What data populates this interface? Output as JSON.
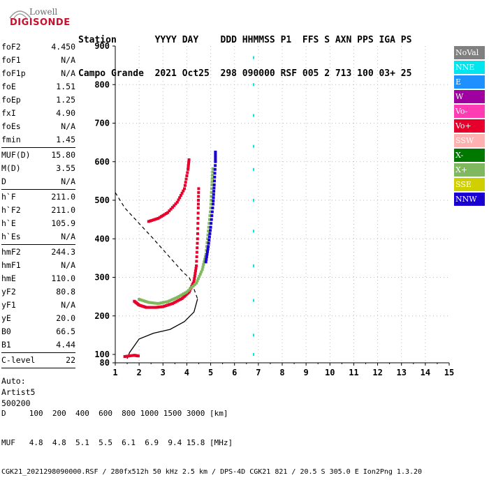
{
  "logo": {
    "top": "Lowell",
    "brand": "DIGISONDE"
  },
  "header": {
    "labels_line": "Station       YYYY DAY    DDD HHMMSS P1  FFS S AXN PPS IGA PS",
    "values_line": "Campo Grande  2021 Oct25  298 090000 RSF 005 2 713 100 03+ 25"
  },
  "params": {
    "group1": [
      {
        "name": "foF2",
        "value": "4.450"
      },
      {
        "name": "foF1",
        "value": "N/A"
      },
      {
        "name": "foF1p",
        "value": "N/A"
      },
      {
        "name": "foE",
        "value": "1.51"
      },
      {
        "name": "foEp",
        "value": "1.25"
      },
      {
        "name": "fxI",
        "value": "4.90"
      },
      {
        "name": "foEs",
        "value": "N/A"
      },
      {
        "name": "fmin",
        "value": "1.45"
      }
    ],
    "group2": [
      {
        "name": "MUF(D)",
        "value": "15.80"
      },
      {
        "name": "M(D)",
        "value": "3.55"
      },
      {
        "name": "D",
        "value": "N/A"
      }
    ],
    "group3": [
      {
        "name": "h`F",
        "value": "211.0"
      },
      {
        "name": "h`F2",
        "value": "211.0"
      },
      {
        "name": "h`E",
        "value": "105.9"
      },
      {
        "name": "h`Es",
        "value": "N/A"
      }
    ],
    "group4": [
      {
        "name": "hmF2",
        "value": "244.3"
      },
      {
        "name": "hmF1",
        "value": "N/A"
      },
      {
        "name": "hmE",
        "value": "110.0"
      },
      {
        "name": "yF2",
        "value": "80.8"
      },
      {
        "name": "yF1",
        "value": "N/A"
      },
      {
        "name": "yE",
        "value": "20.0"
      },
      {
        "name": "B0",
        "value": "66.5"
      },
      {
        "name": "B1",
        "value": "4.44"
      }
    ],
    "group5": [
      {
        "name": "C-level",
        "value": "22"
      }
    ],
    "auto": [
      "Auto:",
      "Artist5",
      "500200"
    ]
  },
  "legend": [
    {
      "label": "NoVal",
      "color": "#808080"
    },
    {
      "label": "NNE",
      "color": "#00e5ee"
    },
    {
      "label": "E",
      "color": "#1e90ff"
    },
    {
      "label": "W",
      "color": "#a000a0"
    },
    {
      "label": "Vo-",
      "color": "#ff3cb4"
    },
    {
      "label": "Vo+",
      "color": "#e8002c"
    },
    {
      "label": "SSW",
      "color": "#ffb0b0"
    },
    {
      "label": "X-",
      "color": "#007800"
    },
    {
      "label": "X+",
      "color": "#80b860"
    },
    {
      "label": "SSE",
      "color": "#d0d000"
    },
    {
      "label": "NNW",
      "color": "#1a00d0"
    }
  ],
  "footer": {
    "line1": "D     100  200  400  600  800 1000 1500 3000 [km]",
    "line2": "MUF   4.8  4.8  5.1  5.5  6.1  6.9  9.4 15.8 [MHz]",
    "line3": "CGK21_2021298090000.RSF / 280fx512h 50 kHz 2.5 km / DPS-4D CGK21 821 / 20.5 S 305.0 E Ion2Png 1.3.20"
  },
  "chart_data": {
    "type": "scatter",
    "x_ticks": [
      "1",
      "2",
      "3",
      "4",
      "5",
      "6",
      "7",
      "8",
      "9",
      "10",
      "11",
      "12",
      "13",
      "14",
      "15"
    ],
    "y_ticks": [
      "80",
      "100",
      "200",
      "300",
      "400",
      "500",
      "600",
      "700",
      "800",
      "900"
    ],
    "xlim": [
      1,
      15
    ],
    "ylim": [
      80,
      900
    ],
    "y_scale": "piecewise: 80-100 compressed, 100-900 linear",
    "grid": "dotted",
    "profile": {
      "name": "electron density profile",
      "points": [
        [
          1.5,
          90
        ],
        [
          1.6,
          105
        ],
        [
          2.0,
          140
        ],
        [
          2.6,
          155
        ],
        [
          3.3,
          165
        ],
        [
          3.9,
          185
        ],
        [
          4.3,
          210
        ],
        [
          4.45,
          244
        ]
      ]
    },
    "profile_dashed": {
      "points": [
        [
          1.0,
          520
        ],
        [
          1.4,
          480
        ],
        [
          2.0,
          440
        ],
        [
          2.6,
          400
        ],
        [
          3.1,
          365
        ],
        [
          3.6,
          330
        ],
        [
          3.9,
          310
        ],
        [
          4.1,
          300
        ],
        [
          4.3,
          270
        ],
        [
          4.45,
          244
        ]
      ]
    },
    "traces": [
      {
        "name": "Vo+",
        "points": [
          [
            1.8,
            238
          ],
          [
            2.0,
            228
          ],
          [
            2.3,
            222
          ],
          [
            2.7,
            222
          ],
          [
            3.0,
            224
          ],
          [
            3.4,
            232
          ],
          [
            3.8,
            245
          ],
          [
            4.1,
            262
          ],
          [
            4.3,
            290
          ],
          [
            4.4,
            330
          ],
          [
            4.45,
            400
          ],
          [
            4.48,
            480
          ],
          [
            4.5,
            540
          ]
        ]
      },
      {
        "name": "X+",
        "points": [
          [
            2.0,
            243
          ],
          [
            2.4,
            235
          ],
          [
            2.8,
            232
          ],
          [
            3.2,
            237
          ],
          [
            3.6,
            248
          ],
          [
            4.0,
            262
          ],
          [
            4.4,
            285
          ],
          [
            4.65,
            320
          ],
          [
            4.8,
            360
          ],
          [
            4.9,
            420
          ],
          [
            5.0,
            480
          ],
          [
            5.05,
            540
          ],
          [
            5.1,
            590
          ]
        ]
      },
      {
        "name": "NNW",
        "points": [
          [
            4.8,
            340
          ],
          [
            4.9,
            380
          ],
          [
            5.0,
            430
          ],
          [
            5.1,
            490
          ],
          [
            5.15,
            540
          ],
          [
            5.2,
            600
          ],
          [
            5.2,
            630
          ]
        ]
      },
      {
        "name": "Vo+",
        "points": [
          [
            2.4,
            445
          ],
          [
            2.8,
            453
          ],
          [
            3.2,
            468
          ],
          [
            3.6,
            495
          ],
          [
            3.9,
            530
          ],
          [
            4.05,
            580
          ],
          [
            4.1,
            610
          ]
        ]
      },
      {
        "name": "Vo+",
        "points": [
          [
            1.4,
            95
          ],
          [
            1.8,
            98
          ],
          [
            2.0,
            96
          ]
        ]
      },
      {
        "name": "NNE",
        "points": [
          [
            6.8,
            100
          ],
          [
            6.8,
            150
          ],
          [
            6.8,
            240
          ],
          [
            6.8,
            330
          ],
          [
            6.8,
            420
          ],
          [
            6.8,
            500
          ],
          [
            6.8,
            580
          ],
          [
            6.8,
            640
          ],
          [
            6.8,
            720
          ],
          [
            6.8,
            800
          ],
          [
            6.8,
            870
          ]
        ]
      }
    ]
  }
}
